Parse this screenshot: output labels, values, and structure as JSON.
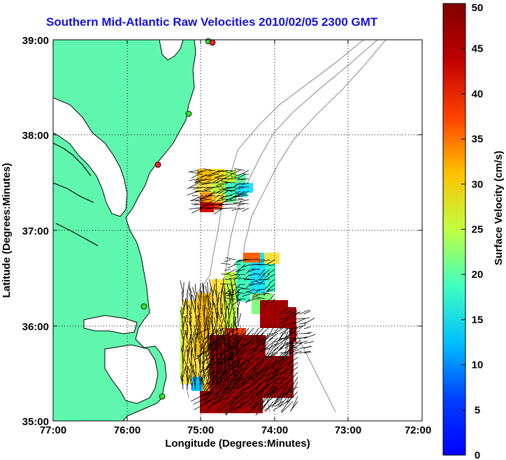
{
  "title": "Southern Mid-Atlantic Raw Velocities 2010/02/05 2300 GMT",
  "xlabel": "Longitude (Degrees:Minutes)",
  "ylabel": "Latitude (Degrees:Minutes)",
  "x_ticks": [
    "77:00",
    "76:00",
    "75:00",
    "74:00",
    "73:00",
    "72:00"
  ],
  "y_ticks": [
    "39:00",
    "38:00",
    "37:00",
    "36:00",
    "35:00"
  ],
  "colorbar": {
    "label": "Surface Velocity (cm/s)",
    "ticks": [
      "0",
      "5",
      "10",
      "15",
      "20",
      "25",
      "30",
      "35",
      "40",
      "45",
      "50"
    ],
    "range": [
      0,
      50
    ],
    "colormap": "jet"
  },
  "colors": {
    "land": "#5ff7ad",
    "ocean": "#ffffff",
    "coastline": "#000000",
    "bathymetry": "#999999",
    "title": "#1010e0",
    "station_green": "#33dd33",
    "station_red": "#ee2222"
  },
  "grid": "dotted"
}
